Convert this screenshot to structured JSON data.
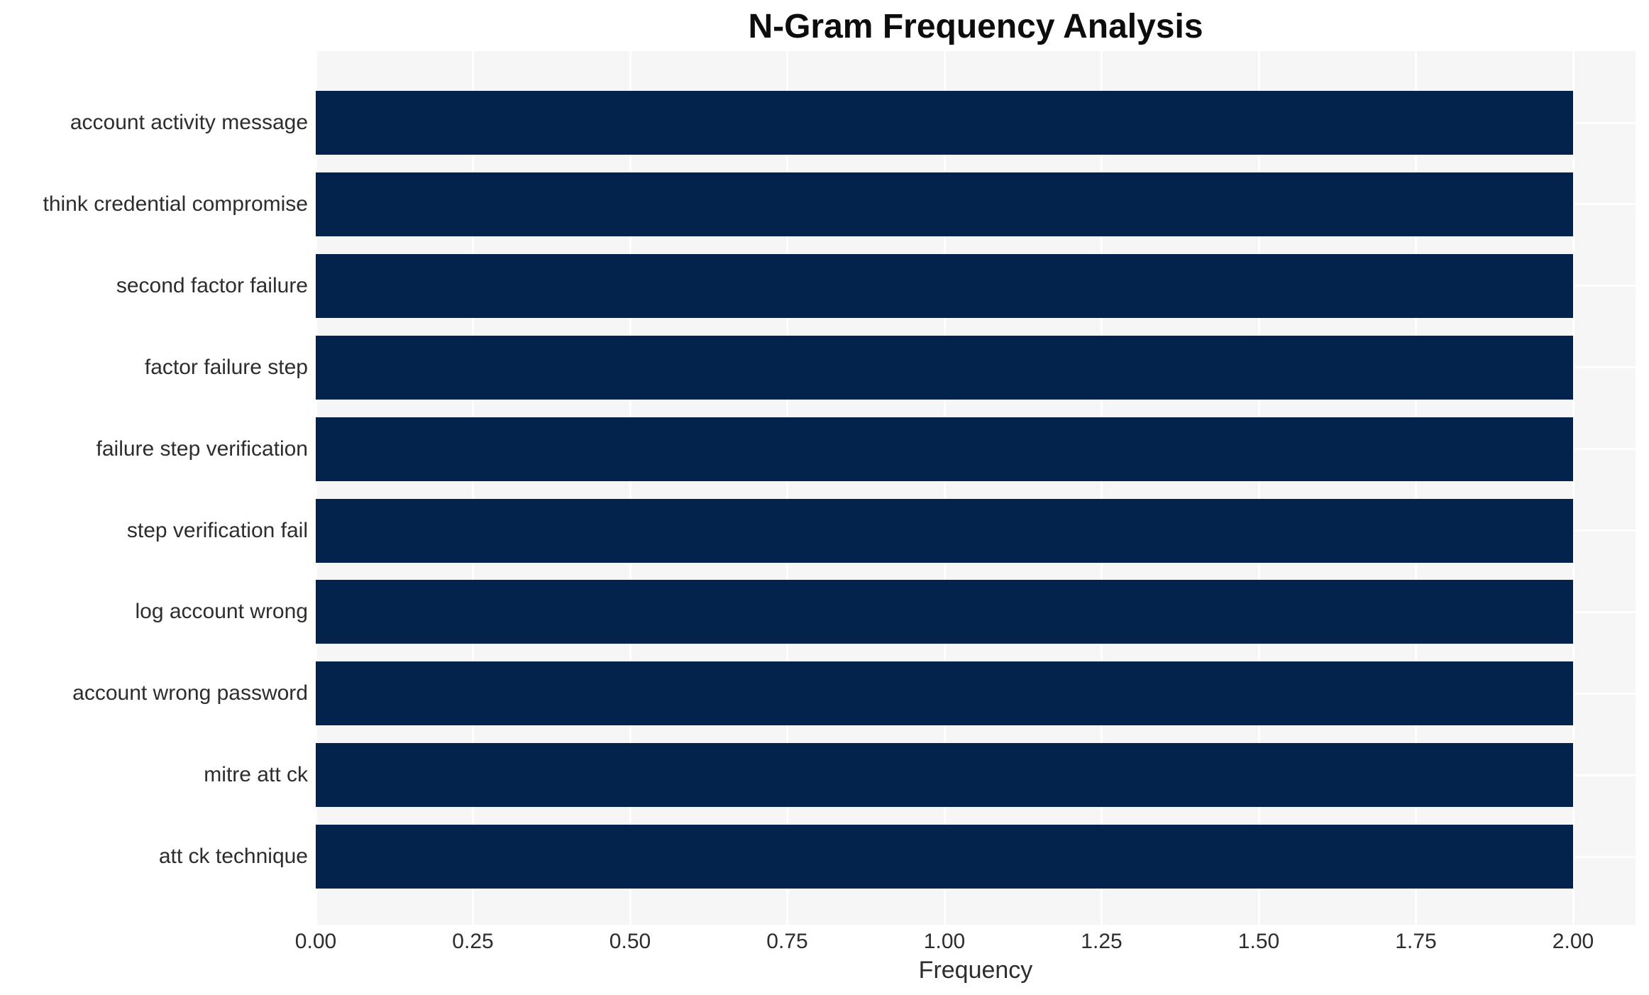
{
  "chart_data": {
    "type": "bar",
    "orientation": "horizontal",
    "title": "N-Gram Frequency Analysis",
    "xlabel": "Frequency",
    "ylabel": "",
    "categories": [
      "account activity message",
      "think credential compromise",
      "second factor failure",
      "factor failure step",
      "failure step verification",
      "step verification fail",
      "log account wrong",
      "account wrong password",
      "mitre att ck",
      "att ck technique"
    ],
    "values": [
      2.0,
      2.0,
      2.0,
      2.0,
      2.0,
      2.0,
      2.0,
      2.0,
      2.0,
      2.0
    ],
    "xlim": [
      0,
      2.1
    ],
    "xtick_values": [
      0.0,
      0.25,
      0.5,
      0.75,
      1.0,
      1.25,
      1.5,
      1.75,
      2.0
    ],
    "xtick_labels": [
      "0.00",
      "0.25",
      "0.50",
      "0.75",
      "1.00",
      "1.25",
      "1.50",
      "1.75",
      "2.00"
    ],
    "legend": null,
    "grid": {
      "vertical": true,
      "horizontal": true
    },
    "colors": {
      "bar": "#04234c",
      "plot_background": "#f6f6f7",
      "gridline": "#ffffff",
      "page_background": "#ffffff",
      "tick_text": "#2d2d2d",
      "title_text": "#0d0d0d"
    }
  }
}
